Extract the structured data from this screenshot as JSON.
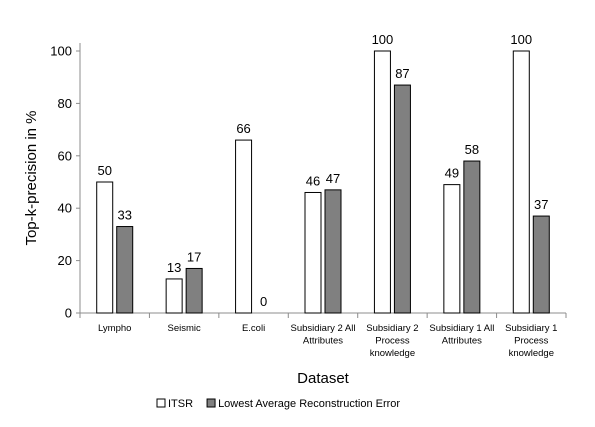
{
  "chart_data": {
    "type": "bar",
    "title": "",
    "xlabel": "Dataset",
    "ylabel": "Top-k-precision in %",
    "ylim": [
      0,
      110
    ],
    "yticks": [
      0,
      20,
      40,
      60,
      80,
      100
    ],
    "grid": false,
    "legend_position": "bottom",
    "categories": [
      [
        "Lympho"
      ],
      [
        "Seismic"
      ],
      [
        "E.coli"
      ],
      [
        "Subsidiary 2 All",
        "Attributes"
      ],
      [
        "Subsidiary 2",
        "Process",
        "knowledge"
      ],
      [
        "Subsidiary 1 All",
        "Attributes"
      ],
      [
        "Subsidiary 1",
        "Process",
        "knowledge"
      ]
    ],
    "series": [
      {
        "name": "ITSR",
        "color": "#ffffff",
        "values": [
          50,
          13,
          66,
          46,
          100,
          49,
          100
        ]
      },
      {
        "name": "Lowest Average Reconstruction Error",
        "color": "#808080",
        "values": [
          33,
          17,
          0,
          47,
          87,
          58,
          37
        ]
      }
    ]
  }
}
